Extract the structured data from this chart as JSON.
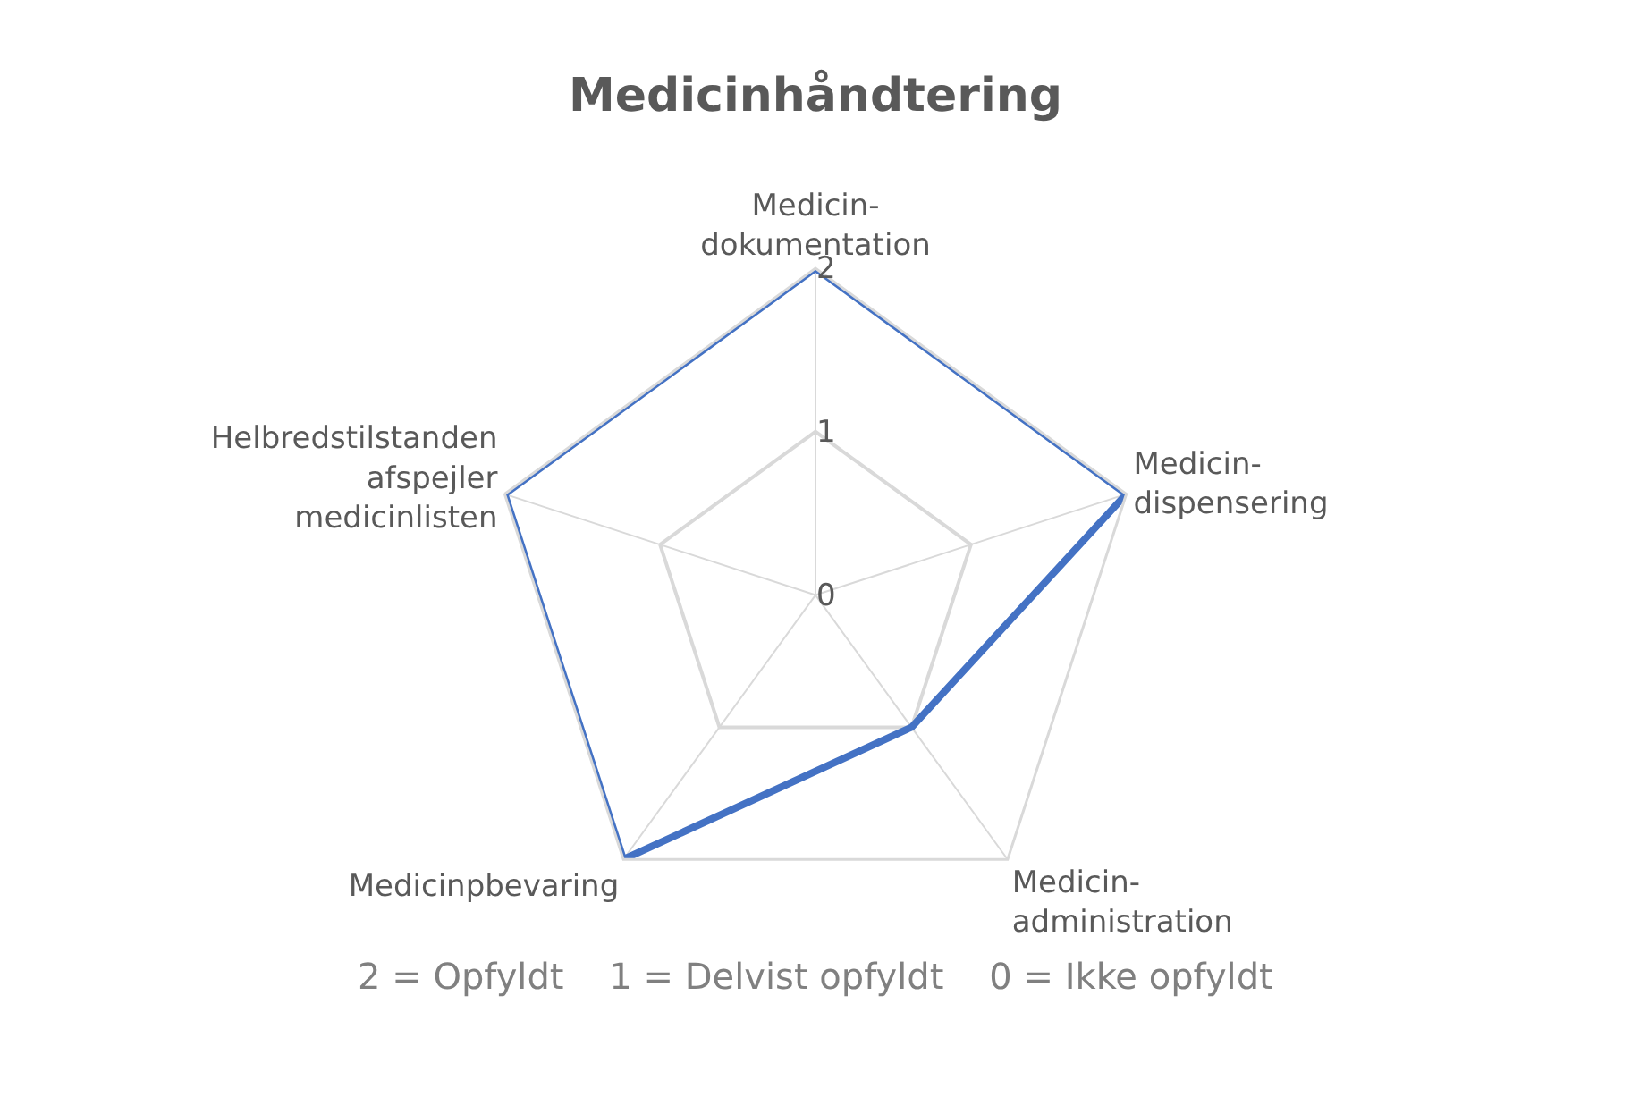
{
  "chart_data": {
    "type": "radar",
    "title": "Medicinhåndtering",
    "categories": [
      "Medicin-\ndokumentation",
      "Medicin-\ndispensering",
      "Medicin-\nadministration",
      "Medicinpbevaring",
      "Helbredstilstanden\nafspejler\nmedicinlisten"
    ],
    "series": [
      {
        "color": "#4472c4",
        "values": [
          2,
          2,
          1,
          2,
          2
        ]
      }
    ],
    "ylim": [
      0,
      2
    ],
    "yticks": [
      0,
      1,
      2
    ],
    "grid": true,
    "marker": "none",
    "line_style": "solid",
    "annotations": [
      "2 = Opfyldt    1 = Delvist opfyldt    0 = Ikke opfyldt"
    ]
  }
}
